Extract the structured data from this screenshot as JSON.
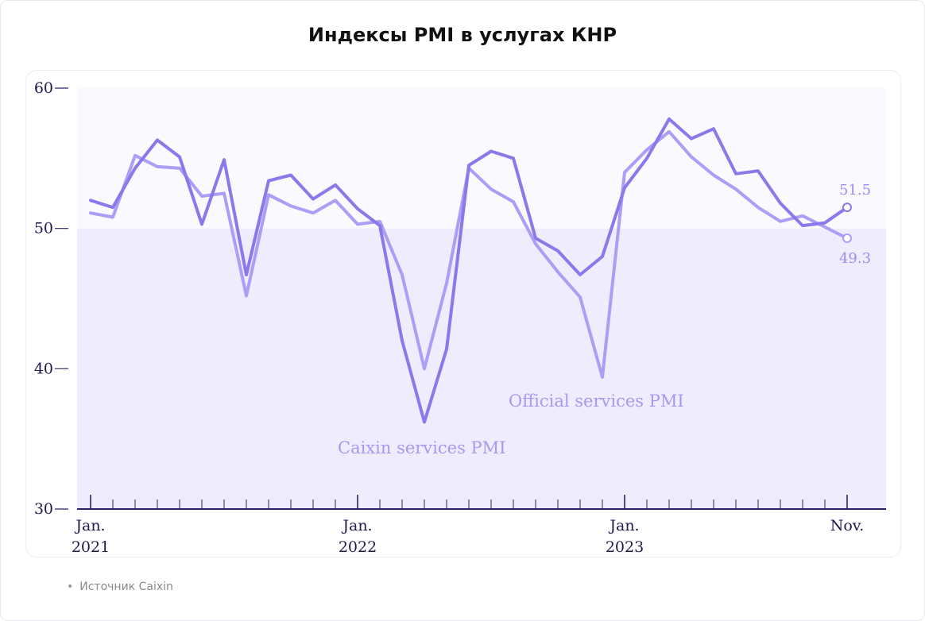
{
  "page": {
    "title": "Индексы PMI в услугах КНР",
    "source_bullet": "•",
    "source": "Источник Caixin"
  },
  "colors": {
    "caixin": "#8b78ea",
    "official": "#ab9ef6",
    "below50_band": "#efedfd",
    "above50_band": "#faf9fe",
    "axis": "#2a2366",
    "label": "#1f1a4f"
  },
  "chart_data": {
    "type": "line",
    "title": "Индексы PMI в услугах КНР",
    "ylim": [
      30,
      60
    ],
    "yticks": [
      30,
      40,
      50,
      60
    ],
    "reference_line": 50,
    "x_labels": [
      {
        "index": 0,
        "line1": "Jan.",
        "line2": "2021"
      },
      {
        "index": 12,
        "line1": "Jan.",
        "line2": "2022"
      },
      {
        "index": 24,
        "line1": "Jan.",
        "line2": "2023"
      },
      {
        "index": 34,
        "line1": "Nov.",
        "line2": ""
      }
    ],
    "x": [
      "2021-01",
      "2021-02",
      "2021-03",
      "2021-04",
      "2021-05",
      "2021-06",
      "2021-07",
      "2021-08",
      "2021-09",
      "2021-10",
      "2021-11",
      "2021-12",
      "2022-01",
      "2022-02",
      "2022-03",
      "2022-04",
      "2022-05",
      "2022-06",
      "2022-07",
      "2022-08",
      "2022-09",
      "2022-10",
      "2022-11",
      "2022-12",
      "2023-01",
      "2023-02",
      "2023-03",
      "2023-04",
      "2023-05",
      "2023-06",
      "2023-07",
      "2023-08",
      "2023-09",
      "2023-10",
      "2023-11"
    ],
    "series": [
      {
        "name": "Caixin services PMI",
        "values": [
          52.0,
          51.5,
          54.3,
          56.3,
          55.1,
          50.3,
          54.9,
          46.7,
          53.4,
          53.8,
          52.1,
          53.1,
          51.4,
          50.2,
          42.0,
          36.2,
          41.4,
          54.5,
          55.5,
          55.0,
          49.3,
          48.4,
          46.7,
          48.0,
          52.9,
          55.0,
          57.8,
          56.4,
          57.1,
          53.9,
          54.1,
          51.8,
          50.2,
          50.4,
          51.5
        ],
        "end_label": "51.5"
      },
      {
        "name": "Official services PMI",
        "values": [
          51.1,
          50.8,
          55.2,
          54.4,
          54.3,
          52.3,
          52.5,
          45.2,
          52.4,
          51.6,
          51.1,
          52.0,
          50.3,
          50.5,
          46.7,
          40.0,
          46.1,
          54.3,
          52.8,
          51.9,
          48.9,
          46.9,
          45.1,
          39.4,
          54.0,
          55.6,
          56.9,
          55.1,
          53.8,
          52.8,
          51.5,
          50.5,
          50.9,
          50.1,
          49.3
        ],
        "end_label": "49.3"
      }
    ]
  }
}
